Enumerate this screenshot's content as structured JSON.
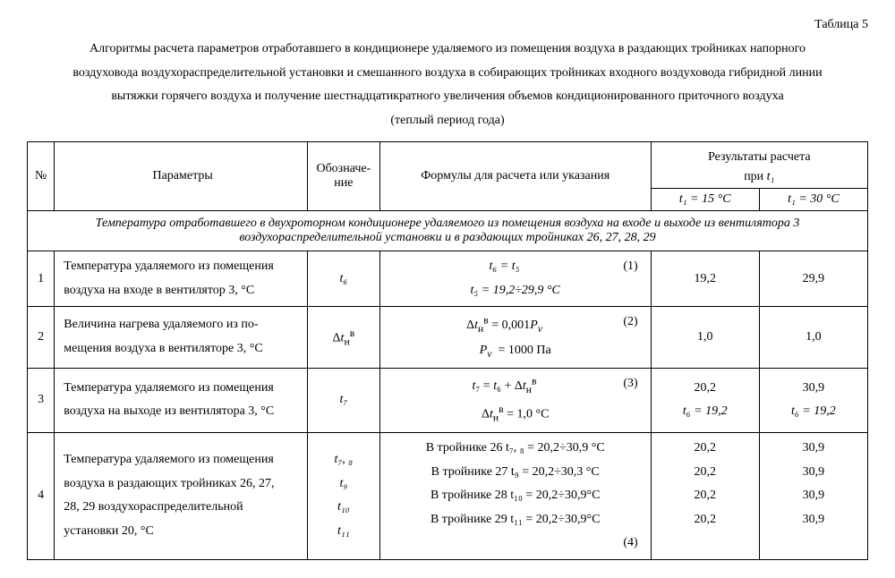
{
  "table_label": "Таблица 5",
  "caption_lines": [
    "Алгоритмы расчета параметров отработавшего в кондиционере удаляемого из помещения воздуха в раздающих тройниках напорного",
    "воздуховода воздухораспределительной установки и смешанного воздуха в собирающих тройниках входного воздуховода гибридной линии",
    "вытяжки горячего воздуха и получение шестнадцатикратного увеличения объемов кондиционированного приточного воздуха",
    "(теплый период года)"
  ],
  "head": {
    "num": "№",
    "param": "Параметры",
    "sym": "Обозначе-\nние",
    "form": "Формулы для расчета или указания",
    "res_top": "Результаты расчета",
    "res_sub": "при ",
    "res_var": "t₁",
    "res_c1": "t₁ = 15 °C",
    "res_c2": "t₁ = 30 °C"
  },
  "section": "Температура отработавшего в двухроторном кондиционере удаляемого из помещения воздуха на входе и выходе из вентилятора 3 воздухораспределительной установки и в раздающих тройниках 26, 27, 28, 29",
  "rows": {
    "r1": {
      "n": "1",
      "p1": "Температура удаляемого из помещения",
      "p2": "воздуха на входе в вентилятор 3, °C",
      "sym": "t₆",
      "f1a": "t₆ = t₅",
      "f1n": "(1)",
      "f2": "t₅ = 19,2÷29,9 °C",
      "v1": "19,2",
      "v2": "29,9"
    },
    "r2": {
      "n": "2",
      "p1": "Величина нагрева удаляемого из по-",
      "p2": "мещения воздуха в вентиляторе 3, °C",
      "sym_html": "Δ<i>t</i><sub>н</sub><sup>в</sup>",
      "f1a_html": "Δ<i>t</i><sub>н</sub><sup>в</sup> = 0,001<i>P<sub>v</sub></i>",
      "f1n": "(2)",
      "f2_html": "<i>P<sub>v</sub></i>&nbsp;&nbsp;= 1000 Па",
      "v1": "1,0",
      "v2": "1,0"
    },
    "r3": {
      "n": "3",
      "p1": "Температура удаляемого из помещения",
      "p2": "воздуха на выходе из вентилятора 3, °C",
      "sym": "t₇",
      "f1a_html": "<i>t</i>₇ = <i>t</i>₆ + Δ<i>t</i><sub>н</sub><sup>в</sup>",
      "f1n": "(3)",
      "f2_html": "Δ<i>t</i><sub>н</sub><sup>в</sup> = 1,0 °C",
      "v1a": "20,2",
      "v1b": "t₆ = 19,2",
      "v2a": "30,9",
      "v2b": "t₆ = 19,2"
    },
    "r4": {
      "n": "4",
      "p1": "Температура удаляемого из помещения",
      "p2": "воздуха в раздающих тройниках 26, 27,",
      "p3": "28, 29 воздухораспределительной",
      "p4": "установки 20, °C",
      "s1": "t₇, ₈",
      "s2": "t₉",
      "s3": "t₁₀",
      "s4": "t₁₁",
      "f1": "В тройнике 26 t₇, ₈ = 20,2÷30,9 °C",
      "f2": "В тройнике 27 t₉ = 20,2÷30,3 °C",
      "f3": "В тройнике 28 t₁₀ = 20,2÷30,9°C",
      "f4": "В тройнике 29 t₁₁ = 20,2÷30,9°C",
      "fn": "(4)",
      "c1a": "20,2",
      "c1b": "20,2",
      "c1c": "20,2",
      "c1d": "20,2",
      "c2a": "30,9",
      "c2b": "30,9",
      "c2c": "30,9",
      "c2d": "30,9"
    }
  }
}
